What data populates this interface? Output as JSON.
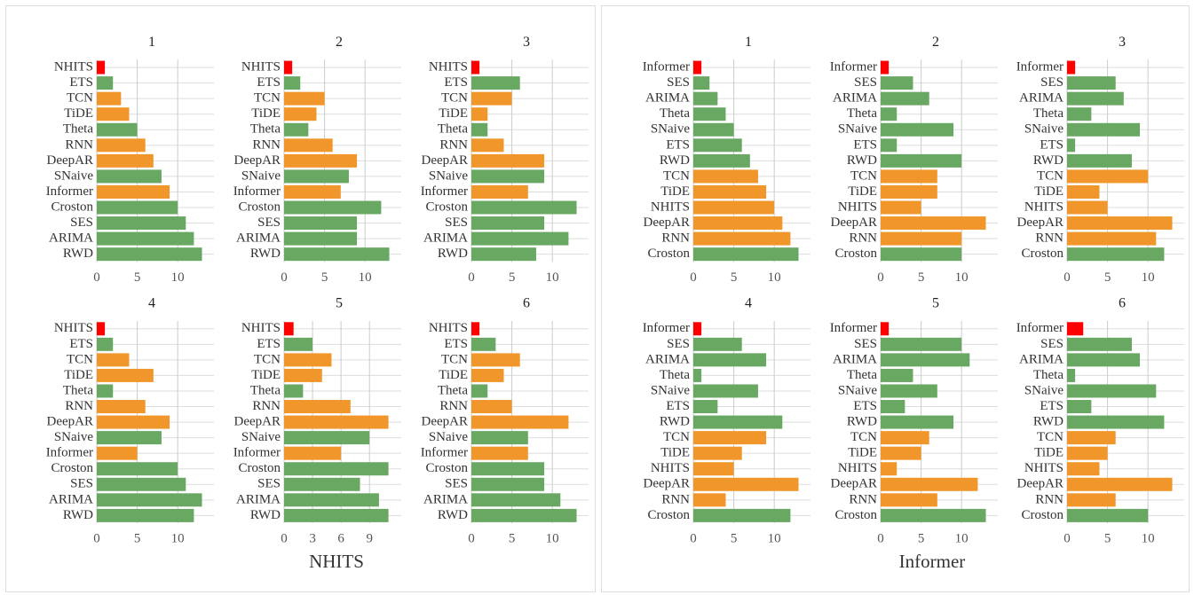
{
  "panels": [
    {
      "label": "NHITS"
    },
    {
      "label": "Informer"
    }
  ],
  "chart_data": [
    {
      "type": "bar",
      "orientation": "horizontal",
      "title": "1",
      "categories": [
        "NHITS",
        "ETS",
        "TCN",
        "TiDE",
        "Theta",
        "RNN",
        "DeepAR",
        "SNaive",
        "Informer",
        "Croston",
        "SES",
        "ARIMA",
        "RWD"
      ],
      "values": [
        1,
        2,
        3,
        4,
        5,
        6,
        7,
        8,
        9,
        10,
        11,
        12,
        13
      ],
      "colors": [
        "#ff0000",
        "#68a862",
        "#f0962a",
        "#f0962a",
        "#68a862",
        "#f0962a",
        "#f0962a",
        "#68a862",
        "#f0962a",
        "#68a862",
        "#68a862",
        "#68a862",
        "#68a862"
      ],
      "xlim": [
        0,
        13.6
      ],
      "xticks": [
        0,
        5,
        10
      ],
      "grid": true
    },
    {
      "type": "bar",
      "orientation": "horizontal",
      "title": "2",
      "categories": [
        "NHITS",
        "ETS",
        "TCN",
        "TiDE",
        "Theta",
        "RNN",
        "DeepAR",
        "SNaive",
        "Informer",
        "Croston",
        "SES",
        "ARIMA",
        "RWD"
      ],
      "values": [
        1,
        2,
        5,
        4,
        3,
        6,
        9,
        8,
        7,
        12,
        9,
        9,
        13
      ],
      "colors": [
        "#ff0000",
        "#68a862",
        "#f0962a",
        "#f0962a",
        "#68a862",
        "#f0962a",
        "#f0962a",
        "#68a862",
        "#f0962a",
        "#68a862",
        "#68a862",
        "#68a862",
        "#68a862"
      ],
      "xlim": [
        0,
        13.6
      ],
      "xticks": [
        0,
        5,
        10
      ],
      "grid": true
    },
    {
      "type": "bar",
      "orientation": "horizontal",
      "title": "3",
      "categories": [
        "NHITS",
        "ETS",
        "TCN",
        "TiDE",
        "Theta",
        "RNN",
        "DeepAR",
        "SNaive",
        "Informer",
        "Croston",
        "SES",
        "ARIMA",
        "RWD"
      ],
      "values": [
        1,
        6,
        5,
        2,
        2,
        4,
        9,
        9,
        7,
        13,
        9,
        12,
        8
      ],
      "colors": [
        "#ff0000",
        "#68a862",
        "#f0962a",
        "#f0962a",
        "#68a862",
        "#f0962a",
        "#f0962a",
        "#68a862",
        "#f0962a",
        "#68a862",
        "#68a862",
        "#68a862",
        "#68a862"
      ],
      "xlim": [
        0,
        13.6
      ],
      "xticks": [
        0,
        5,
        10
      ],
      "grid": true
    },
    {
      "type": "bar",
      "orientation": "horizontal",
      "title": "4",
      "categories": [
        "NHITS",
        "ETS",
        "TCN",
        "TiDE",
        "Theta",
        "RNN",
        "DeepAR",
        "SNaive",
        "Informer",
        "Croston",
        "SES",
        "ARIMA",
        "RWD"
      ],
      "values": [
        1,
        2,
        4,
        7,
        2,
        6,
        9,
        8,
        5,
        10,
        11,
        13,
        12
      ],
      "colors": [
        "#ff0000",
        "#68a862",
        "#f0962a",
        "#f0962a",
        "#68a862",
        "#f0962a",
        "#f0962a",
        "#68a862",
        "#f0962a",
        "#68a862",
        "#68a862",
        "#68a862",
        "#68a862"
      ],
      "xlim": [
        0,
        13.6
      ],
      "xticks": [
        0,
        5,
        10
      ],
      "grid": true
    },
    {
      "type": "bar",
      "orientation": "horizontal",
      "title": "5",
      "categories": [
        "NHITS",
        "ETS",
        "TCN",
        "TiDE",
        "Theta",
        "RNN",
        "DeepAR",
        "SNaive",
        "Informer",
        "Croston",
        "SES",
        "ARIMA",
        "RWD"
      ],
      "values": [
        1,
        3,
        5,
        4,
        2,
        7,
        11,
        9,
        6,
        11,
        8,
        10,
        11
      ],
      "colors": [
        "#ff0000",
        "#68a862",
        "#f0962a",
        "#f0962a",
        "#68a862",
        "#f0962a",
        "#f0962a",
        "#68a862",
        "#f0962a",
        "#68a862",
        "#68a862",
        "#68a862",
        "#68a862"
      ],
      "xlim": [
        0,
        11.6
      ],
      "xticks": [
        0,
        3,
        6,
        9
      ],
      "grid": true
    },
    {
      "type": "bar",
      "orientation": "horizontal",
      "title": "6",
      "categories": [
        "NHITS",
        "ETS",
        "TCN",
        "TiDE",
        "Theta",
        "RNN",
        "DeepAR",
        "SNaive",
        "Informer",
        "Croston",
        "SES",
        "ARIMA",
        "RWD"
      ],
      "values": [
        1,
        3,
        6,
        4,
        2,
        5,
        12,
        7,
        7,
        9,
        9,
        11,
        13
      ],
      "colors": [
        "#ff0000",
        "#68a862",
        "#f0962a",
        "#f0962a",
        "#68a862",
        "#f0962a",
        "#f0962a",
        "#68a862",
        "#f0962a",
        "#68a862",
        "#68a862",
        "#68a862",
        "#68a862"
      ],
      "xlim": [
        0,
        13.6
      ],
      "xticks": [
        0,
        5,
        10
      ],
      "grid": true
    },
    {
      "type": "bar",
      "orientation": "horizontal",
      "title": "1",
      "categories": [
        "Informer",
        "SES",
        "ARIMA",
        "Theta",
        "SNaive",
        "ETS",
        "RWD",
        "TCN",
        "TiDE",
        "NHITS",
        "DeepAR",
        "RNN",
        "Croston"
      ],
      "values": [
        1,
        2,
        3,
        4,
        5,
        6,
        7,
        8,
        9,
        10,
        11,
        12,
        13
      ],
      "colors": [
        "#ff0000",
        "#68a862",
        "#68a862",
        "#68a862",
        "#68a862",
        "#68a862",
        "#68a862",
        "#f0962a",
        "#f0962a",
        "#f0962a",
        "#f0962a",
        "#f0962a",
        "#68a862"
      ],
      "xlim": [
        0,
        13.6
      ],
      "xticks": [
        0,
        5,
        10
      ],
      "grid": true
    },
    {
      "type": "bar",
      "orientation": "horizontal",
      "title": "2",
      "categories": [
        "Informer",
        "SES",
        "ARIMA",
        "Theta",
        "SNaive",
        "ETS",
        "RWD",
        "TCN",
        "TiDE",
        "NHITS",
        "DeepAR",
        "RNN",
        "Croston"
      ],
      "values": [
        1,
        4,
        6,
        2,
        9,
        2,
        10,
        7,
        7,
        5,
        13,
        10,
        10
      ],
      "colors": [
        "#ff0000",
        "#68a862",
        "#68a862",
        "#68a862",
        "#68a862",
        "#68a862",
        "#68a862",
        "#f0962a",
        "#f0962a",
        "#f0962a",
        "#f0962a",
        "#f0962a",
        "#68a862"
      ],
      "xlim": [
        0,
        13.6
      ],
      "xticks": [
        0,
        5,
        10
      ],
      "grid": true
    },
    {
      "type": "bar",
      "orientation": "horizontal",
      "title": "3",
      "categories": [
        "Informer",
        "SES",
        "ARIMA",
        "Theta",
        "SNaive",
        "ETS",
        "RWD",
        "TCN",
        "TiDE",
        "NHITS",
        "DeepAR",
        "RNN",
        "Croston"
      ],
      "values": [
        1,
        6,
        7,
        3,
        9,
        1,
        8,
        10,
        4,
        5,
        13,
        11,
        12
      ],
      "colors": [
        "#ff0000",
        "#68a862",
        "#68a862",
        "#68a862",
        "#68a862",
        "#68a862",
        "#68a862",
        "#f0962a",
        "#f0962a",
        "#f0962a",
        "#f0962a",
        "#f0962a",
        "#68a862"
      ],
      "xlim": [
        0,
        13.6
      ],
      "xticks": [
        0,
        5,
        10
      ],
      "grid": true
    },
    {
      "type": "bar",
      "orientation": "horizontal",
      "title": "4",
      "categories": [
        "Informer",
        "SES",
        "ARIMA",
        "Theta",
        "SNaive",
        "ETS",
        "RWD",
        "TCN",
        "TiDE",
        "NHITS",
        "DeepAR",
        "RNN",
        "Croston"
      ],
      "values": [
        1,
        6,
        9,
        1,
        8,
        3,
        11,
        9,
        6,
        5,
        13,
        4,
        12
      ],
      "colors": [
        "#ff0000",
        "#68a862",
        "#68a862",
        "#68a862",
        "#68a862",
        "#68a862",
        "#68a862",
        "#f0962a",
        "#f0962a",
        "#f0962a",
        "#f0962a",
        "#f0962a",
        "#68a862"
      ],
      "xlim": [
        0,
        13.6
      ],
      "xticks": [
        0,
        5,
        10
      ],
      "grid": true
    },
    {
      "type": "bar",
      "orientation": "horizontal",
      "title": "5",
      "categories": [
        "Informer",
        "SES",
        "ARIMA",
        "Theta",
        "SNaive",
        "ETS",
        "RWD",
        "TCN",
        "TiDE",
        "NHITS",
        "DeepAR",
        "RNN",
        "Croston"
      ],
      "values": [
        1,
        10,
        11,
        4,
        7,
        3,
        9,
        6,
        5,
        2,
        12,
        7,
        13
      ],
      "colors": [
        "#ff0000",
        "#68a862",
        "#68a862",
        "#68a862",
        "#68a862",
        "#68a862",
        "#68a862",
        "#f0962a",
        "#f0962a",
        "#f0962a",
        "#f0962a",
        "#f0962a",
        "#68a862"
      ],
      "xlim": [
        0,
        13.6
      ],
      "xticks": [
        0,
        5,
        10
      ],
      "grid": true
    },
    {
      "type": "bar",
      "orientation": "horizontal",
      "title": "6",
      "categories": [
        "Informer",
        "SES",
        "ARIMA",
        "Theta",
        "SNaive",
        "ETS",
        "RWD",
        "TCN",
        "TiDE",
        "NHITS",
        "DeepAR",
        "RNN",
        "Croston"
      ],
      "values": [
        2,
        8,
        9,
        1,
        11,
        3,
        12,
        6,
        5,
        4,
        13,
        6,
        10
      ],
      "colors": [
        "#ff0000",
        "#68a862",
        "#68a862",
        "#68a862",
        "#68a862",
        "#68a862",
        "#68a862",
        "#f0962a",
        "#f0962a",
        "#f0962a",
        "#f0962a",
        "#f0962a",
        "#68a862"
      ],
      "xlim": [
        0,
        13.6
      ],
      "xticks": [
        0,
        5,
        10
      ],
      "grid": true
    }
  ]
}
